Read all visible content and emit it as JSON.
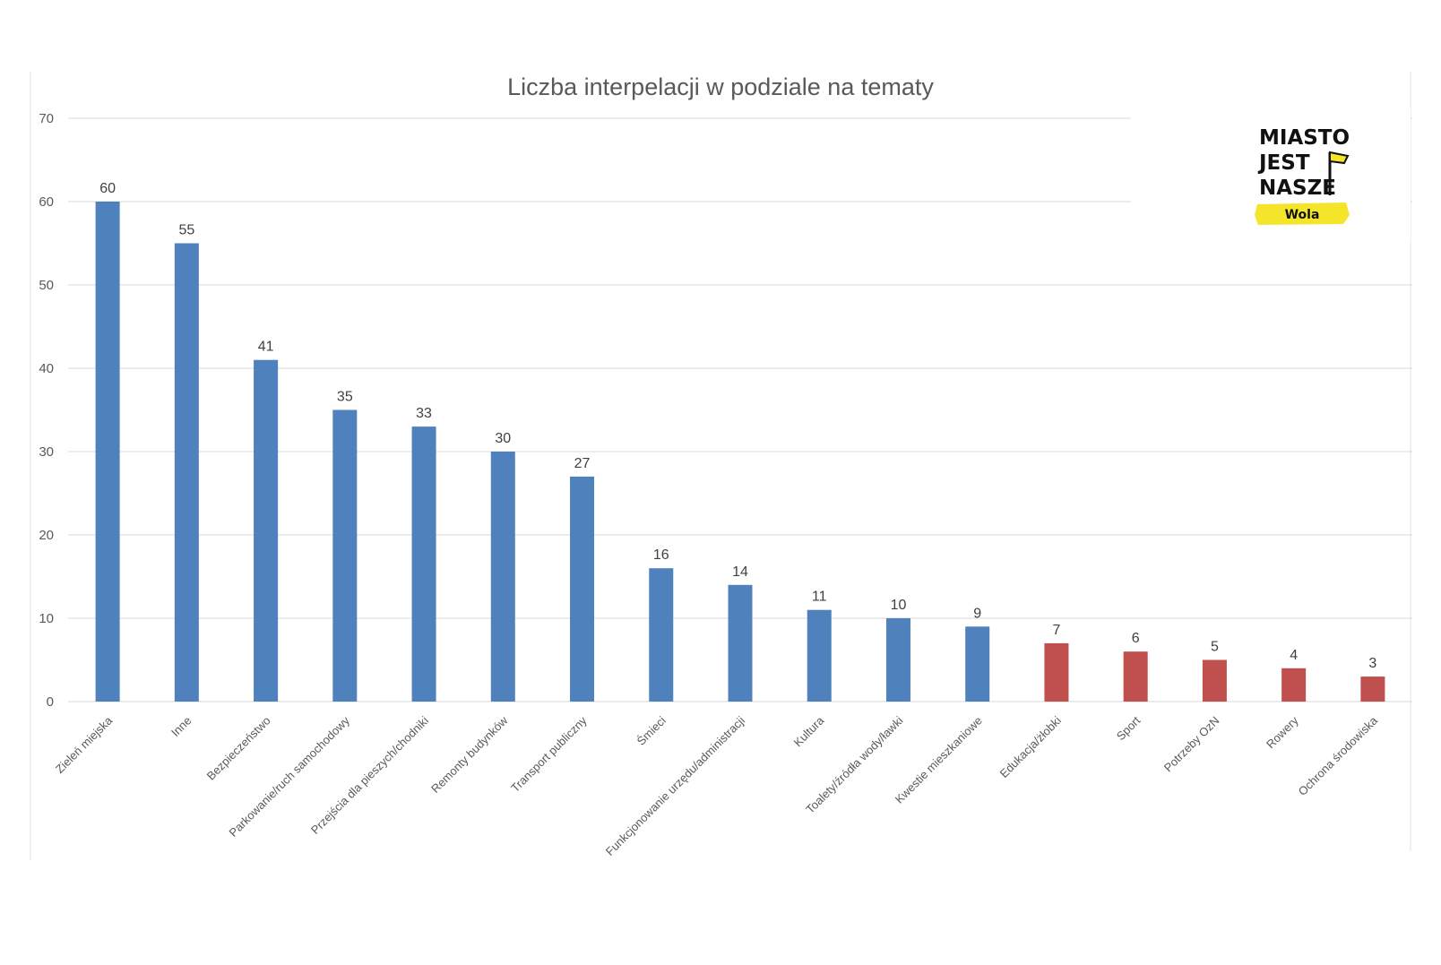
{
  "chart_data": {
    "type": "bar",
    "title": "Liczba interpelacji w podziale na tematy",
    "xlabel": "",
    "ylabel": "",
    "ylim": [
      0,
      70
    ],
    "yticks": [
      0,
      10,
      20,
      30,
      40,
      50,
      60,
      70
    ],
    "grid": true,
    "legend": "none",
    "categories": [
      "Zieleń miejska",
      "Inne",
      "Bezpieczeństwo",
      "Parkowanie/ruch samochodowy",
      "Przejścia dla pieszych/chodniki",
      "Remonty budynków",
      "Transport publiczny",
      "Śmieci",
      "Funkcjonowanie urzędu/administracji",
      "Kultura",
      "Toalety/źródła wody/ławki",
      "Kwestie mieszkaniowe",
      "Edukacja/żłobki",
      "Sport",
      "Potrzeby OzN",
      "Rowery",
      "Ochrona środowiska"
    ],
    "values": [
      60,
      55,
      41,
      35,
      33,
      30,
      27,
      16,
      14,
      11,
      10,
      9,
      7,
      6,
      5,
      4,
      3
    ],
    "bar_colors": [
      "#4f81bd",
      "#4f81bd",
      "#4f81bd",
      "#4f81bd",
      "#4f81bd",
      "#4f81bd",
      "#4f81bd",
      "#4f81bd",
      "#4f81bd",
      "#4f81bd",
      "#4f81bd",
      "#4f81bd",
      "#c0504d",
      "#c0504d",
      "#c0504d",
      "#c0504d",
      "#c0504d"
    ]
  },
  "logo": {
    "lines": [
      "MIASTO",
      "JEST",
      "NASZE"
    ],
    "badge": "Wola",
    "highlight_color": "#f5e52a"
  }
}
